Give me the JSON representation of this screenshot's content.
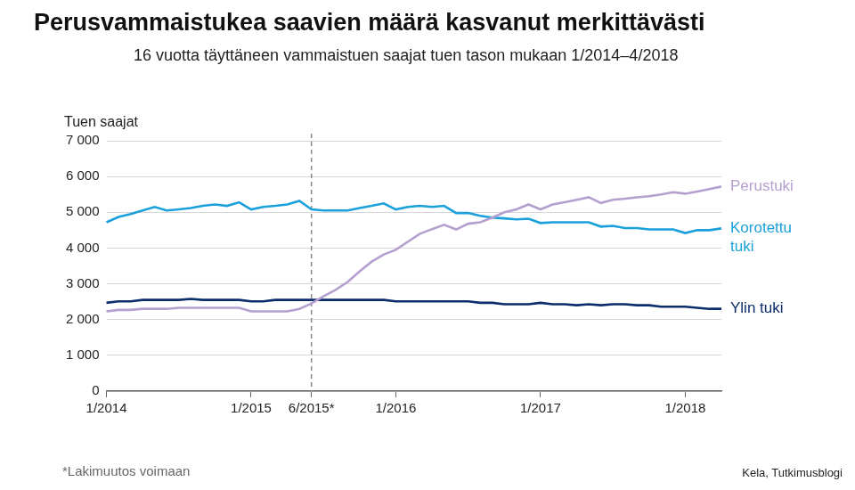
{
  "chart_data": {
    "type": "line",
    "title": "Perusvammaistukea saavien määrä kasvanut merkittävästi",
    "subtitle": "16 vuotta täyttäneen vammaistuen saajat tuen tason mukaan 1/2014–4/2018",
    "y_label": "Tuen saajat",
    "source": "Kela, Tutkimusblogi",
    "categories": [
      "1/2014",
      null,
      null,
      null,
      null,
      null,
      null,
      null,
      null,
      null,
      null,
      null,
      "1/2015",
      null,
      null,
      null,
      null,
      "6/2015*",
      null,
      null,
      null,
      null,
      null,
      null,
      "1/2016",
      null,
      null,
      null,
      null,
      null,
      null,
      null,
      null,
      null,
      null,
      null,
      "1/2017",
      null,
      null,
      null,
      null,
      null,
      null,
      null,
      null,
      null,
      null,
      null,
      "1/2018",
      null,
      null,
      null
    ],
    "series": [
      {
        "name": "Perustuki",
        "color": "#b49fcf",
        "values": [
          2230,
          2270,
          2270,
          2300,
          2300,
          2300,
          2330,
          2330,
          2330,
          2330,
          2330,
          2330,
          2230,
          2230,
          2230,
          2230,
          2300,
          2450,
          2650,
          2830,
          3050,
          3350,
          3620,
          3820,
          3950,
          4180,
          4400,
          4530,
          4650,
          4520,
          4680,
          4720,
          4850,
          5000,
          5080,
          5220,
          5080,
          5220,
          5280,
          5350,
          5420,
          5260,
          5350,
          5380,
          5420,
          5450,
          5500,
          5560,
          5520,
          5580,
          5650,
          5720
        ]
      },
      {
        "name": "Korotettu tuki",
        "color": "#1aa0da",
        "values": [
          4720,
          4870,
          4950,
          5050,
          5150,
          5050,
          5080,
          5120,
          5180,
          5220,
          5180,
          5280,
          5080,
          5150,
          5180,
          5220,
          5320,
          5080,
          5050,
          5050,
          5050,
          5120,
          5180,
          5250,
          5080,
          5150,
          5180,
          5150,
          5180,
          4980,
          4980,
          4900,
          4850,
          4830,
          4800,
          4820,
          4700,
          4720,
          4720,
          4720,
          4720,
          4600,
          4620,
          4560,
          4560,
          4520,
          4520,
          4520,
          4420,
          4500,
          4500,
          4550
        ]
      },
      {
        "name": "Ylin tuki",
        "color": "#0c2d6b",
        "values": [
          2470,
          2510,
          2510,
          2550,
          2550,
          2550,
          2550,
          2580,
          2550,
          2550,
          2550,
          2550,
          2510,
          2510,
          2550,
          2550,
          2550,
          2550,
          2550,
          2550,
          2550,
          2550,
          2550,
          2550,
          2510,
          2510,
          2510,
          2510,
          2510,
          2510,
          2510,
          2470,
          2470,
          2430,
          2430,
          2430,
          2470,
          2430,
          2430,
          2400,
          2430,
          2400,
          2430,
          2430,
          2400,
          2400,
          2360,
          2360,
          2360,
          2330,
          2300,
          2300
        ]
      }
    ],
    "ylim": [
      0,
      7000
    ],
    "yticks": [
      0,
      {
        "value": 1000,
        "label": "1 000"
      },
      {
        "value": 2000,
        "label": "2 000"
      },
      {
        "value": 3000,
        "label": "3 000"
      },
      {
        "value": 4000,
        "label": "4 000"
      },
      {
        "value": 5000,
        "label": "5 000"
      },
      {
        "value": 6000,
        "label": "6 000"
      },
      {
        "value": 7000,
        "label": "7 000"
      }
    ],
    "grid": true,
    "annotations": [
      {
        "x": "6/2015*",
        "text": "*Lakimuutos voimaan",
        "line_style": "dashed"
      }
    ]
  }
}
